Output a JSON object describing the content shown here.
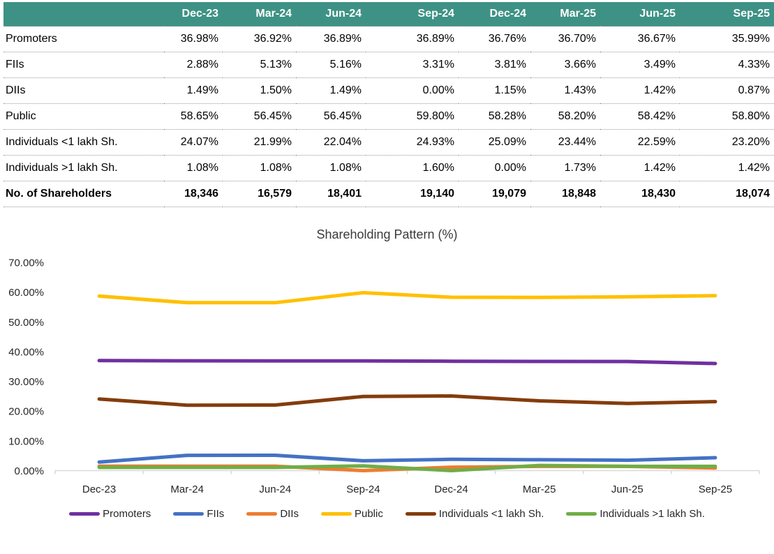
{
  "table": {
    "columns": [
      "Dec-23",
      "Mar-24",
      "Jun-24",
      "Sep-24",
      "Dec-24",
      "Mar-25",
      "Jun-25",
      "Sep-25"
    ],
    "rows": [
      {
        "label": "Promoters",
        "values": [
          "36.98%",
          "36.92%",
          "36.89%",
          "36.89%",
          "36.76%",
          "36.70%",
          "36.67%",
          "35.99%"
        ],
        "bold": false
      },
      {
        "label": "FIIs",
        "values": [
          "2.88%",
          "5.13%",
          "5.16%",
          "3.31%",
          "3.81%",
          "3.66%",
          "3.49%",
          "4.33%"
        ],
        "bold": false
      },
      {
        "label": "DIIs",
        "values": [
          "1.49%",
          "1.50%",
          "1.49%",
          "0.00%",
          "1.15%",
          "1.43%",
          "1.42%",
          "0.87%"
        ],
        "bold": false
      },
      {
        "label": "Public",
        "values": [
          "58.65%",
          "56.45%",
          "56.45%",
          "59.80%",
          "58.28%",
          "58.20%",
          "58.42%",
          "58.80%"
        ],
        "bold": false
      },
      {
        "label": "Individuals <1 lakh Sh.",
        "values": [
          "24.07%",
          "21.99%",
          "22.04%",
          "24.93%",
          "25.09%",
          "23.44%",
          "22.59%",
          "23.20%"
        ],
        "bold": false
      },
      {
        "label": "Individuals >1 lakh Sh.",
        "values": [
          "1.08%",
          "1.08%",
          "1.08%",
          "1.60%",
          "0.00%",
          "1.73%",
          "1.42%",
          "1.42%"
        ],
        "bold": false
      },
      {
        "label": "No. of Shareholders",
        "values": [
          "18,346",
          "16,579",
          "18,401",
          "19,140",
          "19,079",
          "18,848",
          "18,430",
          "18,074"
        ],
        "bold": true
      }
    ]
  },
  "chart_data": {
    "type": "line",
    "title": "Shareholding Pattern (%)",
    "categories": [
      "Dec-23",
      "Mar-24",
      "Jun-24",
      "Sep-24",
      "Dec-24",
      "Mar-25",
      "Jun-25",
      "Sep-25"
    ],
    "series": [
      {
        "name": "Promoters",
        "color": "#7030A0",
        "values": [
          36.98,
          36.92,
          36.89,
          36.89,
          36.76,
          36.7,
          36.67,
          35.99
        ]
      },
      {
        "name": "FIIs",
        "color": "#4472C4",
        "values": [
          2.88,
          5.13,
          5.16,
          3.31,
          3.81,
          3.66,
          3.49,
          4.33
        ]
      },
      {
        "name": "DIIs",
        "color": "#ED7D31",
        "values": [
          1.49,
          1.5,
          1.49,
          0.0,
          1.15,
          1.43,
          1.42,
          0.87
        ]
      },
      {
        "name": "Public",
        "color": "#FFC000",
        "values": [
          58.65,
          56.45,
          56.45,
          59.8,
          58.28,
          58.2,
          58.42,
          58.8
        ]
      },
      {
        "name": "Individuals <1 lakh Sh.",
        "color": "#843C0C",
        "values": [
          24.07,
          21.99,
          22.04,
          24.93,
          25.09,
          23.44,
          22.59,
          23.2
        ]
      },
      {
        "name": "Individuals >1 lakh Sh.",
        "color": "#70AD47",
        "values": [
          1.08,
          1.08,
          1.08,
          1.6,
          0.0,
          1.73,
          1.42,
          1.42
        ]
      }
    ],
    "ylim": [
      0,
      70
    ],
    "ytick_step": 10,
    "ytick_labels": [
      "0.00%",
      "10.00%",
      "20.00%",
      "30.00%",
      "40.00%",
      "50.00%",
      "60.00%",
      "70.00%"
    ],
    "xlabel": "",
    "ylabel": "",
    "grid": false,
    "legend_position": "bottom",
    "axis_color": "#D9D9D9"
  },
  "colors": {
    "header_bg": "#3E9285",
    "header_text": "#FFFFFF"
  }
}
